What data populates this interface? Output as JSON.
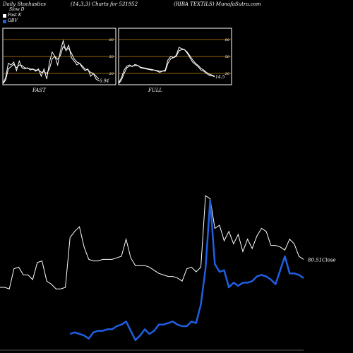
{
  "header": {
    "left": "Daily Stochastics",
    "center": "(14,3,3) Charts for 531952",
    "right": "(RIBA TEXTILS) MunafaSutra.com"
  },
  "legend": [
    {
      "label": "Slow D",
      "color": "#000000"
    },
    {
      "label": "Fast K",
      "color": "#ffffff"
    },
    {
      "label": "OBV",
      "color": "#1f5fe0"
    }
  ],
  "chart_data": [
    {
      "type": "line",
      "xlabel": "FAST",
      "ylim": [
        0,
        100
      ],
      "levels": [
        20,
        50,
        80
      ],
      "ticks": [
        20,
        50,
        80
      ],
      "last_label": "6.94",
      "series": [
        {
          "color": "#ffffff",
          "values": [
            2,
            12,
            38,
            35,
            40,
            25,
            42,
            30,
            28,
            30,
            26,
            28,
            24,
            28,
            15,
            28,
            10,
            40,
            58,
            50,
            35,
            60,
            78,
            60,
            70,
            48,
            42,
            35,
            38,
            30,
            25,
            28,
            15,
            20,
            10,
            7
          ]
        },
        {
          "color": "#ffffff",
          "values": [
            2,
            8,
            28,
            32,
            36,
            30,
            35,
            34,
            30,
            29,
            28,
            27,
            26,
            26,
            22,
            23,
            20,
            28,
            46,
            50,
            45,
            52,
            68,
            62,
            64,
            56,
            46,
            40,
            38,
            33,
            28,
            26,
            22,
            20,
            15,
            10
          ]
        }
      ]
    },
    {
      "type": "line",
      "xlabel": "FULL",
      "ylim": [
        0,
        100
      ],
      "levels": [
        20,
        50,
        80
      ],
      "ticks": [
        20,
        50,
        80
      ],
      "last_label": "14.5",
      "series": [
        {
          "color": "#ffffff",
          "values": [
            3,
            12,
            26,
            33,
            35,
            32,
            36,
            34,
            30,
            29,
            28,
            27,
            26,
            26,
            24,
            22,
            24,
            26,
            44,
            50,
            48,
            52,
            66,
            64,
            62,
            56,
            48,
            40,
            36,
            32,
            26,
            24,
            20,
            17,
            16,
            14
          ]
        },
        {
          "color": "#ffffff",
          "values": [
            2,
            8,
            20,
            30,
            33,
            33,
            34,
            34,
            31,
            30,
            29,
            28,
            27,
            26,
            25,
            24,
            24,
            24,
            38,
            46,
            48,
            50,
            60,
            62,
            62,
            58,
            51,
            44,
            38,
            34,
            29,
            26,
            22,
            19,
            17,
            15
          ]
        }
      ]
    },
    {
      "type": "line",
      "ylim": [
        0,
        1
      ],
      "last_label": "80.51",
      "last_suffix": "Close",
      "series": [
        {
          "name": "Close",
          "color": "#ffffff",
          "values": [
            0.4,
            0.4,
            0.39,
            0.52,
            0.53,
            0.48,
            0.48,
            0.45,
            0.56,
            0.57,
            0.44,
            0.42,
            0.39,
            0.39,
            0.4,
            0.72,
            0.76,
            0.79,
            0.66,
            0.58,
            0.57,
            0.57,
            0.58,
            0.58,
            0.58,
            0.59,
            0.6,
            0.71,
            0.59,
            0.54,
            0.54,
            0.54,
            0.53,
            0.51,
            0.49,
            0.48,
            0.47,
            0.47,
            0.46,
            0.44,
            0.52,
            0.53,
            0.5,
            0.53,
            0.99,
            0.97,
            0.78,
            0.8,
            0.7,
            0.76,
            0.68,
            0.74,
            0.63,
            0.71,
            0.65,
            0.73,
            0.78,
            0.76,
            0.67,
            0.67,
            0.66,
            0.64,
            0.71,
            0.68,
            0.6,
            0.58
          ]
        },
        {
          "name": "OBV",
          "color": "#1f5fe0",
          "values": [
            0,
            0,
            0,
            0,
            0,
            0,
            0,
            0,
            0,
            0,
            0,
            0,
            0,
            0,
            0,
            0.1,
            0.11,
            0.1,
            0.09,
            0.07,
            0.11,
            0.12,
            0.12,
            0.13,
            0.13,
            0.15,
            0.16,
            0.18,
            0.12,
            0.06,
            0.09,
            0.13,
            0.1,
            0.12,
            0.16,
            0.16,
            0.17,
            0.18,
            0.16,
            0.15,
            0.15,
            0.18,
            0.17,
            0.29,
            0.52,
            0.96,
            0.55,
            0.5,
            0.51,
            0.4,
            0.43,
            0.41,
            0.43,
            0.43,
            0.44,
            0.47,
            0.48,
            0.47,
            0.45,
            0.42,
            0.51,
            0.6,
            0.49,
            0.49,
            0.48,
            0.46
          ]
        }
      ]
    }
  ]
}
